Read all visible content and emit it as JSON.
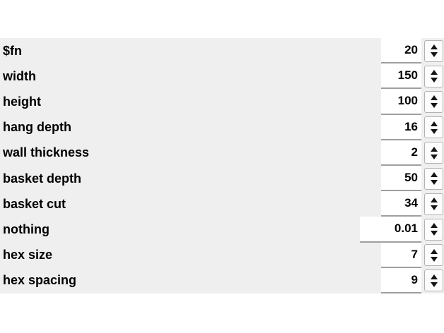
{
  "panel": {
    "name": "customizer-parameters",
    "rows": [
      {
        "label": "$fn",
        "value": "20",
        "wide": false
      },
      {
        "label": "width",
        "value": "150",
        "wide": false
      },
      {
        "label": "height",
        "value": "100",
        "wide": false
      },
      {
        "label": "hang depth",
        "value": "16",
        "wide": false
      },
      {
        "label": "wall thickness",
        "value": "2",
        "wide": false
      },
      {
        "label": "basket depth",
        "value": "50",
        "wide": false
      },
      {
        "label": "basket cut",
        "value": "34",
        "wide": false
      },
      {
        "label": "nothing",
        "value": "0.01",
        "wide": true
      },
      {
        "label": "hex size",
        "value": "7",
        "wide": false
      },
      {
        "label": "hex spacing",
        "value": "9",
        "wide": false
      }
    ],
    "colors": {
      "panel_background": "#efefef",
      "field_background": "#ffffff",
      "separator_line": "#9f9f9f",
      "spinner_border": "#b2b2b2",
      "text": "#000000"
    }
  }
}
